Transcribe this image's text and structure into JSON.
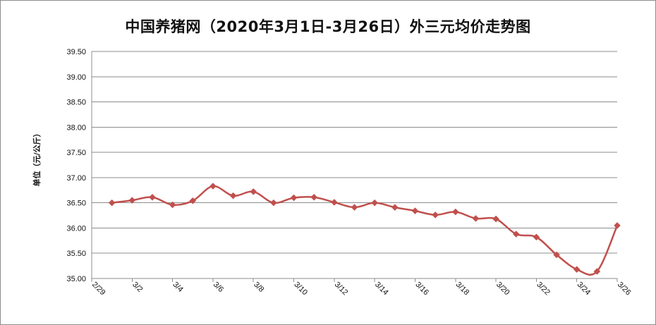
{
  "chart_data": {
    "type": "line",
    "title": "中国养猪网（2020年3月1日-3月26日）外三元均价走势图",
    "ylabel": "单位（元/公斤）",
    "xlabel": "",
    "ylim": [
      35.0,
      39.5
    ],
    "y_ticks": [
      "39.50",
      "39.00",
      "38.50",
      "38.00",
      "37.50",
      "37.00",
      "36.50",
      "36.00",
      "35.50",
      "35.00"
    ],
    "y_tick_values": [
      39.5,
      39.0,
      38.5,
      38.0,
      37.5,
      37.0,
      36.5,
      36.0,
      35.5,
      35.0
    ],
    "x_tick_labels": [
      "2/29",
      "3/2",
      "3/4",
      "3/6",
      "3/8",
      "3/10",
      "3/12",
      "3/14",
      "3/16",
      "3/18",
      "3/20",
      "3/22",
      "3/24",
      "3/26"
    ],
    "grid": true,
    "series": [
      {
        "color": "#c0504d",
        "marker": "diamond",
        "x": [
          "3/1",
          "3/2",
          "3/3",
          "3/4",
          "3/5",
          "3/6",
          "3/7",
          "3/8",
          "3/9",
          "3/10",
          "3/11",
          "3/12",
          "3/13",
          "3/14",
          "3/15",
          "3/16",
          "3/17",
          "3/18",
          "3/19",
          "3/20",
          "3/21",
          "3/22",
          "3/23",
          "3/24",
          "3/25",
          "3/26"
        ],
        "values": [
          36.5,
          36.55,
          36.61,
          36.46,
          36.54,
          36.83,
          36.64,
          36.72,
          36.5,
          36.6,
          36.61,
          36.51,
          36.41,
          36.5,
          36.41,
          36.34,
          36.26,
          36.32,
          36.19,
          36.18,
          35.88,
          35.82,
          35.47,
          35.18,
          35.14,
          36.05
        ]
      }
    ]
  }
}
